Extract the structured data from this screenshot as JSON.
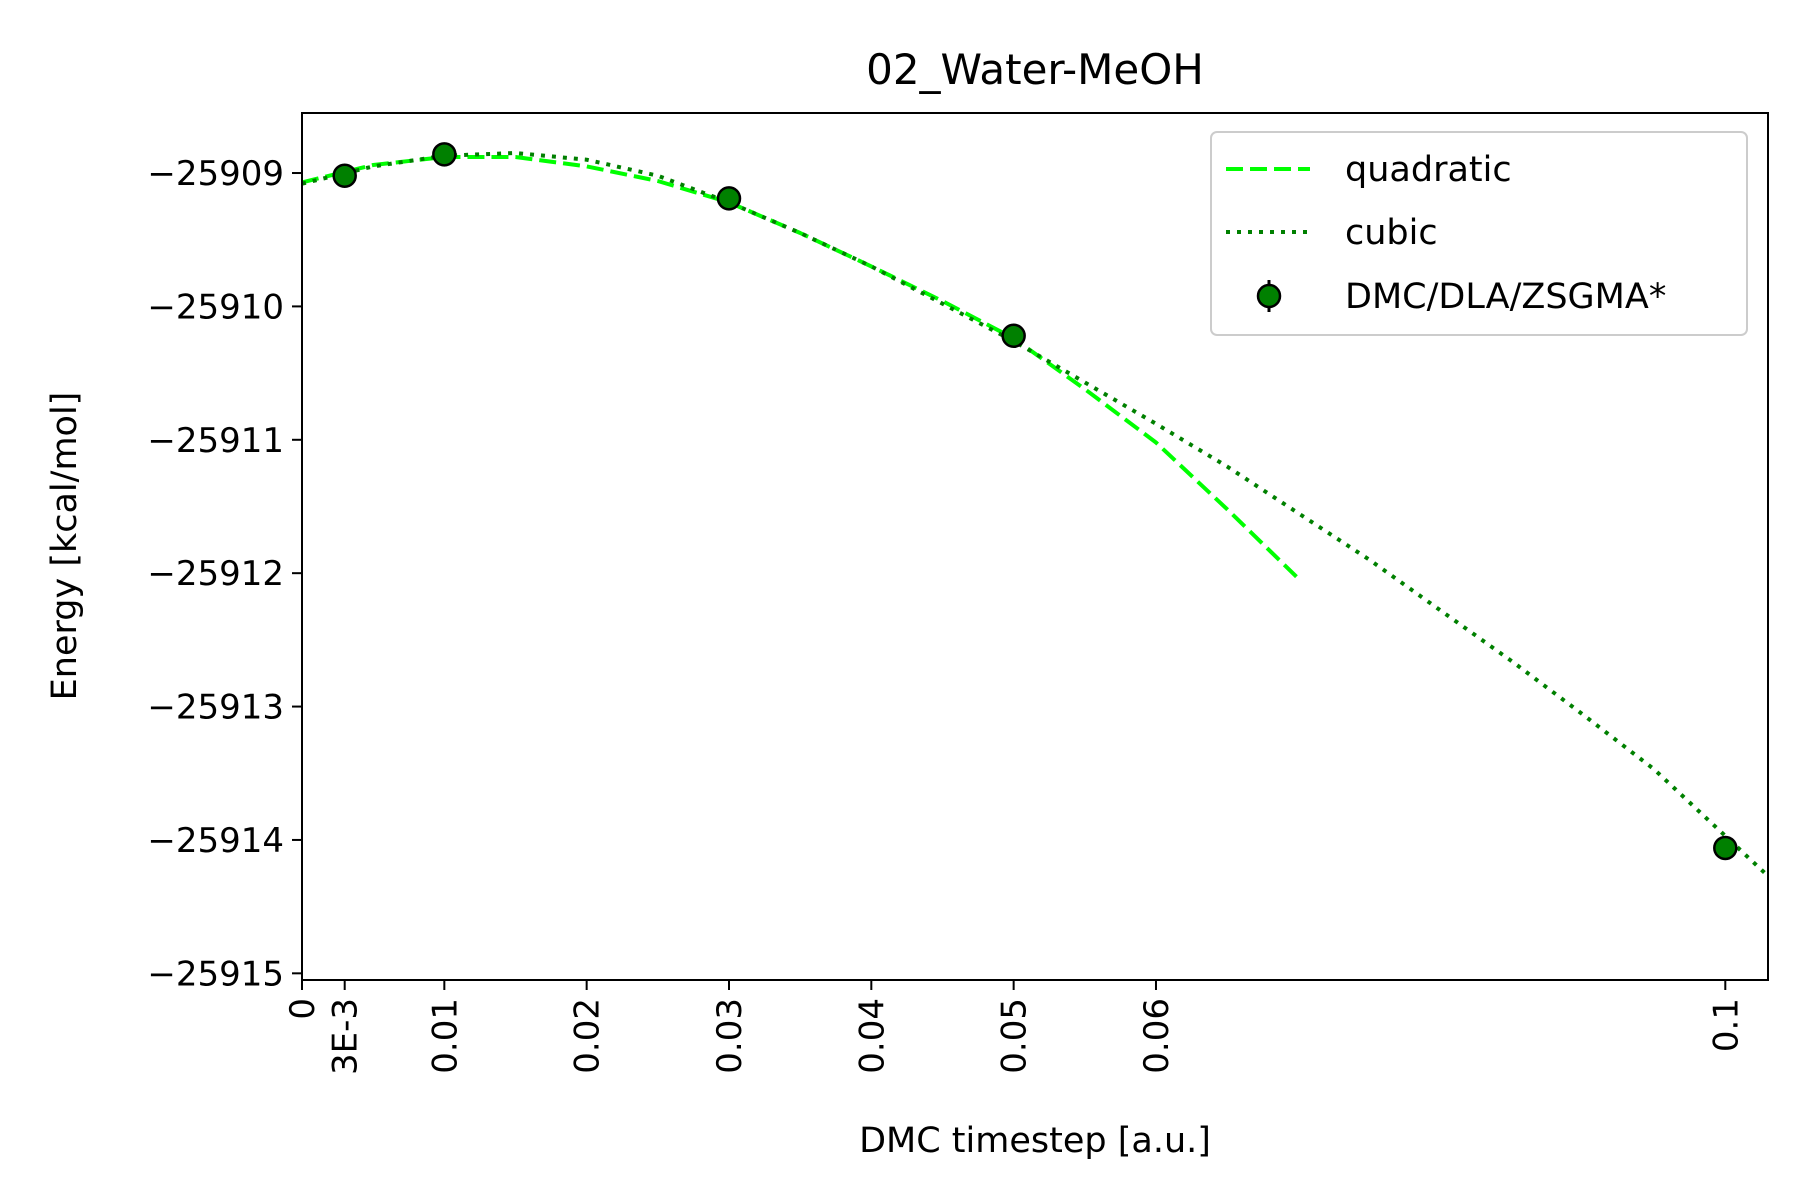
{
  "chart_data": {
    "type": "line",
    "title": "02_Water-MeOH",
    "xlabel": "DMC timestep [a.u.]",
    "ylabel": "Energy [kcal/mol]",
    "xlim": [
      0,
      0.103
    ],
    "ylim": [
      -25915.05,
      -25908.55
    ],
    "x_ticks": [
      {
        "value": 0,
        "label": "0"
      },
      {
        "value": 0.003,
        "label": "3E-3"
      },
      {
        "value": 0.01,
        "label": "0.01"
      },
      {
        "value": 0.02,
        "label": "0.02"
      },
      {
        "value": 0.03,
        "label": "0.03"
      },
      {
        "value": 0.04,
        "label": "0.04"
      },
      {
        "value": 0.05,
        "label": "0.05"
      },
      {
        "value": 0.06,
        "label": "0.06"
      },
      {
        "value": 0.1,
        "label": "0.1"
      }
    ],
    "y_ticks": [
      {
        "value": -25909,
        "label": "−25909"
      },
      {
        "value": -25910,
        "label": "−25910"
      },
      {
        "value": -25911,
        "label": "−25911"
      },
      {
        "value": -25912,
        "label": "−25912"
      },
      {
        "value": -25913,
        "label": "−25913"
      },
      {
        "value": -25914,
        "label": "−25914"
      },
      {
        "value": -25915,
        "label": "−25915"
      }
    ],
    "legend_position": "top-right",
    "series": [
      {
        "name": "quadratic",
        "kind": "line",
        "style": "dashed",
        "color": "#00ff00",
        "x": [
          0,
          0.005,
          0.01,
          0.015,
          0.02,
          0.025,
          0.03,
          0.035,
          0.04,
          0.045,
          0.05,
          0.055,
          0.06,
          0.065,
          0.07
        ],
        "y": [
          -25909.07,
          -25908.94,
          -25908.88,
          -25908.88,
          -25908.95,
          -25909.06,
          -25909.22,
          -25909.45,
          -25909.7,
          -25909.96,
          -25910.24,
          -25910.62,
          -25911.02,
          -25911.52,
          -25912.04
        ]
      },
      {
        "name": "cubic",
        "kind": "line",
        "style": "dotted",
        "color": "#008000",
        "x": [
          0,
          0.005,
          0.01,
          0.015,
          0.02,
          0.025,
          0.03,
          0.035,
          0.04,
          0.045,
          0.05,
          0.055,
          0.06,
          0.065,
          0.07,
          0.075,
          0.08,
          0.085,
          0.09,
          0.095,
          0.1,
          0.103
        ],
        "y": [
          -25909.08,
          -25908.95,
          -25908.87,
          -25908.85,
          -25908.9,
          -25909.02,
          -25909.22,
          -25909.45,
          -25909.7,
          -25909.98,
          -25910.26,
          -25910.57,
          -25910.88,
          -25911.2,
          -25911.55,
          -25911.9,
          -25912.28,
          -25912.66,
          -25913.06,
          -25913.47,
          -25913.97,
          -25914.27
        ]
      },
      {
        "name": "DMC/DLA/ZSGMA*",
        "kind": "errorbar",
        "color": "#008000",
        "edge_color": "#000000",
        "x": [
          0.003,
          0.01,
          0.03,
          0.05,
          0.1
        ],
        "y": [
          -25909.02,
          -25908.86,
          -25909.19,
          -25910.22,
          -25914.06
        ]
      }
    ]
  }
}
